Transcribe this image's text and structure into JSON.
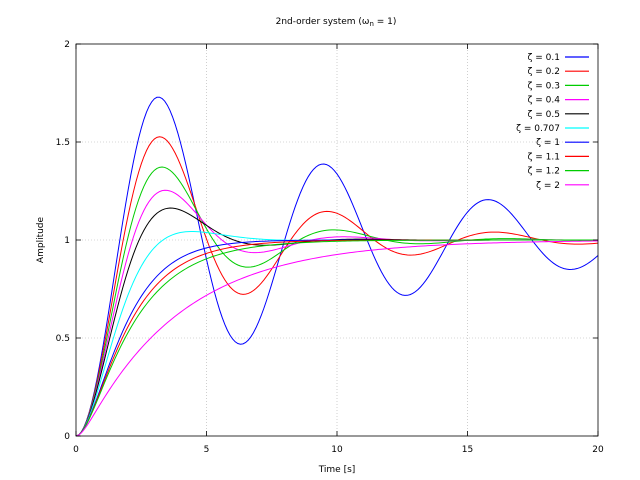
{
  "chart_data": {
    "type": "line",
    "title_main": "2nd-order system (ω",
    "title_sub": "n",
    "title_end": " = 1)",
    "xlabel": "Time [s]",
    "ylabel": "Amplitude",
    "xlim": [
      0,
      20
    ],
    "ylim": [
      0,
      2
    ],
    "xticks": [
      0,
      5,
      10,
      15,
      20
    ],
    "xtick_labels": [
      "0",
      "5",
      "10",
      "15",
      "20"
    ],
    "yticks": [
      0,
      0.5,
      1,
      1.5,
      2
    ],
    "ytick_labels": [
      "0",
      "0.5",
      "1",
      "1.5",
      "2"
    ],
    "grid": true,
    "legend_position": "top-right",
    "omega_n": 1,
    "t_step": 0.1,
    "series": [
      {
        "name": "ζ = 0.1",
        "zeta": 0.1,
        "color": "#0000ff"
      },
      {
        "name": "ζ = 0.2",
        "zeta": 0.2,
        "color": "#ff0000"
      },
      {
        "name": "ζ = 0.3",
        "zeta": 0.3,
        "color": "#00cc00"
      },
      {
        "name": "ζ = 0.4",
        "zeta": 0.4,
        "color": "#ff00ff"
      },
      {
        "name": "ζ = 0.5",
        "zeta": 0.5,
        "color": "#000000"
      },
      {
        "name": "ζ = 0.707",
        "zeta": 0.707,
        "color": "#00ffff"
      },
      {
        "name": "ζ = 1",
        "zeta": 1,
        "color": "#0000ff"
      },
      {
        "name": "ζ = 1.1",
        "zeta": 1.1,
        "color": "#ff0000"
      },
      {
        "name": "ζ = 1.2",
        "zeta": 1.2,
        "color": "#00cc00"
      },
      {
        "name": "ζ = 2",
        "zeta": 2,
        "color": "#ff00ff"
      }
    ]
  }
}
